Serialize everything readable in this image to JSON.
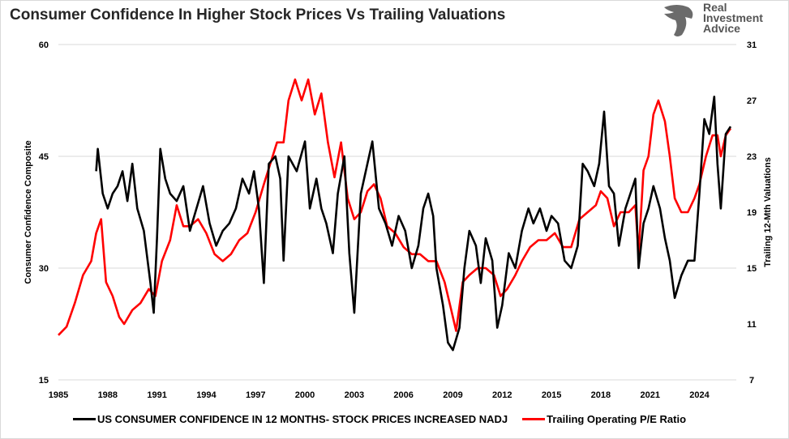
{
  "title": "Consumer Confidence In Higher Stock Prices Vs Trailing Valuations",
  "logo": {
    "text_lines": [
      "Real",
      "Investment",
      "Advice"
    ]
  },
  "chart_data": {
    "type": "line",
    "title": "Consumer Confidence In Higher Stock Prices Vs Trailing Valuations",
    "ylabel": "Consumer Confidence Composite",
    "y2label": "Trailing 12-Mth Valuations",
    "xlim": [
      1985,
      2026
    ],
    "ylim": [
      15,
      60
    ],
    "y2lim": [
      7,
      31
    ],
    "x_ticks": [
      "1985",
      "1988",
      "1991",
      "1994",
      "1997",
      "2000",
      "2003",
      "2006",
      "2009",
      "2012",
      "2015",
      "2018",
      "2021",
      "2024"
    ],
    "y_ticks": [
      "15",
      "30",
      "45",
      "60"
    ],
    "y2_ticks": [
      "7",
      "11",
      "15",
      "19",
      "23",
      "27",
      "31"
    ],
    "grid": "horizontal",
    "legend": "bottom",
    "series": [
      {
        "name": "US CONSUMER CONFIDENCE IN 12 MONTHS- STOCK PRICES INCREASED NADJ",
        "axis": "left",
        "color": "#000000",
        "x": [
          1987.3,
          1987.4,
          1987.7,
          1988.0,
          1988.3,
          1988.6,
          1988.9,
          1989.2,
          1989.5,
          1989.8,
          1990.2,
          1990.6,
          1990.8,
          1991.0,
          1991.2,
          1991.5,
          1991.8,
          1992.2,
          1992.6,
          1993.0,
          1993.4,
          1993.8,
          1994.2,
          1994.6,
          1995.0,
          1995.4,
          1995.8,
          1996.2,
          1996.6,
          1996.9,
          1997.2,
          1997.5,
          1997.8,
          1998.2,
          1998.5,
          1998.7,
          1999.0,
          1999.5,
          2000.0,
          2000.3,
          2000.7,
          2001.0,
          2001.3,
          2001.7,
          2002.0,
          2002.4,
          2002.7,
          2003.0,
          2003.4,
          2003.8,
          2004.1,
          2004.5,
          2004.9,
          2005.3,
          2005.7,
          2006.1,
          2006.5,
          2006.9,
          2007.2,
          2007.5,
          2007.8,
          2008.0,
          2008.4,
          2008.7,
          2009.0,
          2009.4,
          2009.7,
          2010.0,
          2010.4,
          2010.7,
          2011.0,
          2011.4,
          2011.7,
          2012.0,
          2012.4,
          2012.8,
          2013.2,
          2013.6,
          2013.9,
          2014.3,
          2014.7,
          2015.0,
          2015.4,
          2015.8,
          2016.2,
          2016.6,
          2016.9,
          2017.2,
          2017.6,
          2017.9,
          2018.2,
          2018.5,
          2018.8,
          2019.1,
          2019.5,
          2019.8,
          2020.1,
          2020.3,
          2020.6,
          2020.9,
          2021.2,
          2021.6,
          2021.9,
          2022.2,
          2022.5,
          2022.9,
          2023.3,
          2023.7,
          2024.0,
          2024.3,
          2024.6,
          2024.9,
          2025.1,
          2025.3,
          2025.6,
          2025.9
        ],
        "y": [
          43,
          46,
          40,
          38,
          40,
          41,
          43,
          39,
          44,
          38,
          35,
          28,
          24,
          34,
          46,
          42,
          40,
          39,
          41,
          35,
          38,
          41,
          36,
          33,
          35,
          36,
          38,
          42,
          40,
          43,
          38,
          28,
          44,
          45,
          42,
          31,
          45,
          43,
          47,
          38,
          42,
          38,
          36,
          32,
          40,
          45,
          32,
          24,
          40,
          44,
          47,
          38,
          36,
          33,
          37,
          35,
          30,
          33,
          38,
          40,
          37,
          30,
          25,
          20,
          19,
          22,
          30,
          35,
          33,
          28,
          34,
          31,
          22,
          25,
          32,
          30,
          35,
          38,
          36,
          38,
          35,
          37,
          36,
          31,
          30,
          33,
          44,
          43,
          41,
          44,
          51,
          41,
          40,
          33,
          38,
          40,
          42,
          30,
          36,
          38,
          41,
          38,
          34,
          31,
          26,
          29,
          31,
          31,
          40,
          50,
          48,
          53,
          44,
          38,
          48,
          49
        ]
      },
      {
        "name": "Trailing Operating P/E Ratio",
        "axis": "right",
        "color": "#ff0000",
        "x": [
          1985.0,
          1985.5,
          1986.0,
          1986.5,
          1987.0,
          1987.3,
          1987.6,
          1987.9,
          1988.3,
          1988.7,
          1989.0,
          1989.5,
          1990.0,
          1990.5,
          1990.9,
          1991.3,
          1991.8,
          1992.2,
          1992.6,
          1993.0,
          1993.5,
          1994.0,
          1994.5,
          1995.0,
          1995.5,
          1996.0,
          1996.5,
          1997.0,
          1997.5,
          1997.9,
          1998.3,
          1998.7,
          1999.0,
          1999.4,
          1999.8,
          2000.2,
          2000.6,
          2001.0,
          2001.4,
          2001.8,
          2002.2,
          2002.6,
          2003.0,
          2003.4,
          2003.8,
          2004.2,
          2004.6,
          2005.0,
          2005.5,
          2006.0,
          2006.5,
          2007.0,
          2007.5,
          2008.0,
          2008.5,
          2008.9,
          2009.2,
          2009.6,
          2010.0,
          2010.5,
          2011.0,
          2011.5,
          2011.9,
          2012.3,
          2012.8,
          2013.2,
          2013.7,
          2014.2,
          2014.7,
          2015.2,
          2015.7,
          2016.2,
          2016.7,
          2017.2,
          2017.7,
          2018.0,
          2018.4,
          2018.8,
          2019.2,
          2019.7,
          2020.1,
          2020.3,
          2020.6,
          2020.9,
          2021.2,
          2021.5,
          2021.9,
          2022.2,
          2022.5,
          2022.9,
          2023.3,
          2023.7,
          2024.0,
          2024.4,
          2024.8,
          2025.1,
          2025.3,
          2025.6,
          2025.9
        ],
        "y": [
          10.2,
          10.8,
          12.5,
          14.5,
          15.5,
          17.5,
          18.5,
          14,
          13,
          11.5,
          11,
          12,
          12.5,
          13.5,
          13,
          15.5,
          17,
          19.5,
          18,
          18,
          18.5,
          17.5,
          16,
          15.5,
          16,
          17,
          17.5,
          19,
          21,
          22.5,
          24,
          24,
          27,
          28.5,
          27,
          28.5,
          26,
          27.5,
          24,
          21.5,
          24,
          20,
          18.5,
          19,
          20.5,
          21,
          20,
          18,
          17.5,
          16.5,
          16,
          16,
          15.5,
          15.5,
          14,
          12,
          10.5,
          14,
          14.5,
          15,
          15,
          14.5,
          13,
          13.5,
          14.5,
          15.5,
          16.5,
          17,
          17,
          17.5,
          16.5,
          16.5,
          18.5,
          19,
          19.5,
          20.5,
          20,
          18,
          19,
          19,
          19.5,
          16,
          22,
          23,
          26,
          27,
          25.5,
          23,
          20,
          19,
          19,
          20,
          21,
          23,
          24.5,
          24.5,
          23,
          24.5,
          25
        ]
      }
    ]
  }
}
